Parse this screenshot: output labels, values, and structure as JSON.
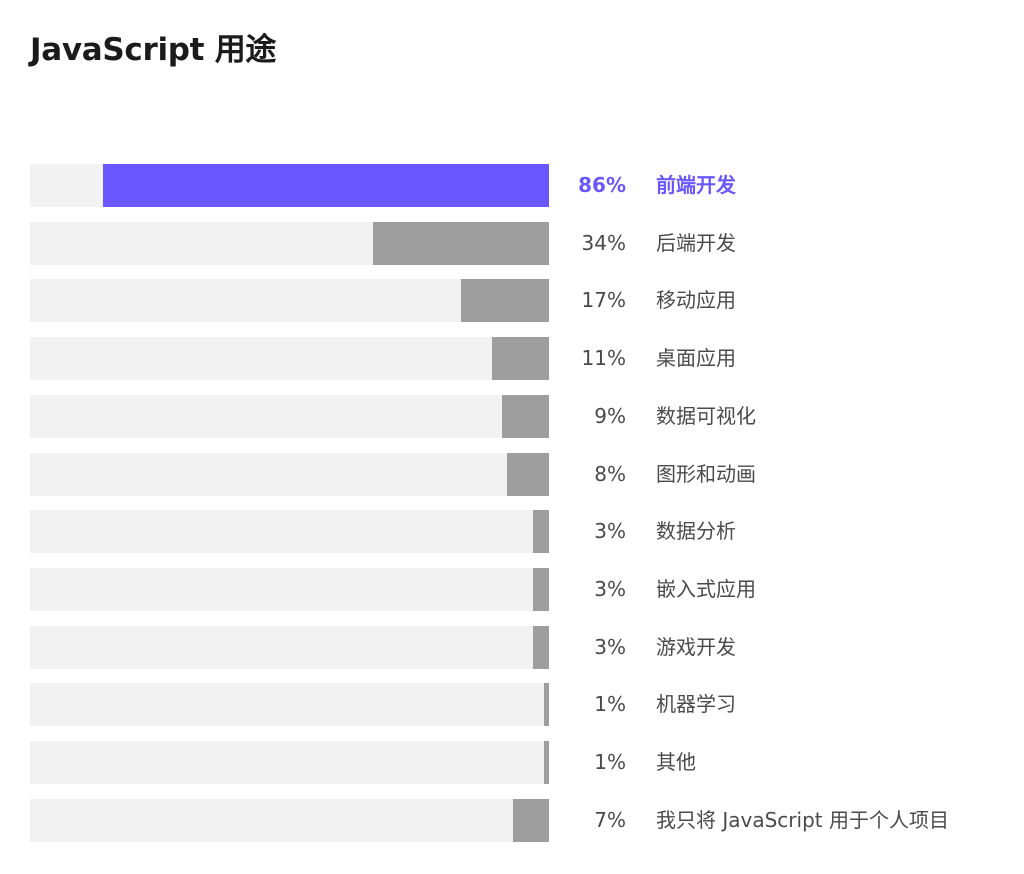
{
  "title": "JavaScript 用途",
  "colors": {
    "highlight": "#6b57ff",
    "bar": "#9e9e9e",
    "track": "#f2f2f2"
  },
  "chart_data": {
    "type": "bar",
    "orientation": "horizontal",
    "title": "JavaScript 用途",
    "categories": [
      "前端开发",
      "后端开发",
      "移动应用",
      "桌面应用",
      "数据可视化",
      "图形和动画",
      "数据分析",
      "嵌入式应用",
      "游戏开发",
      "机器学习",
      "其他",
      "我只将 JavaScript 用于个人项目"
    ],
    "values": [
      86,
      34,
      17,
      11,
      9,
      8,
      3,
      3,
      3,
      1,
      1,
      7
    ],
    "value_labels": [
      "86%",
      "34%",
      "17%",
      "11%",
      "9%",
      "8%",
      "3%",
      "3%",
      "3%",
      "1%",
      "1%",
      "7%"
    ],
    "unit": "%",
    "xlim": [
      0,
      100
    ],
    "highlight_index": 0,
    "grid": false,
    "legend": false
  }
}
